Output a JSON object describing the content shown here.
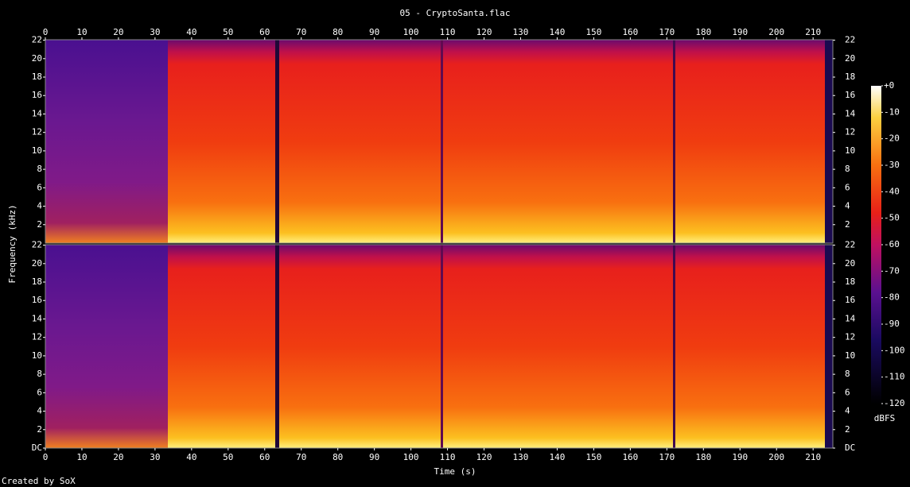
{
  "chart_data": {
    "type": "spectrogram",
    "title": "05 - CryptoSanta.flac",
    "xlabel": "Time (s)",
    "ylabel": "Frequency (kHz)",
    "xlim": [
      0,
      215.4
    ],
    "xticks": [
      0,
      10,
      20,
      30,
      40,
      50,
      60,
      70,
      80,
      90,
      100,
      110,
      120,
      130,
      140,
      150,
      160,
      170,
      180,
      190,
      200,
      210
    ],
    "ylim": [
      0,
      22.05
    ],
    "channels": [
      {
        "yticks": [
          2,
          4,
          6,
          8,
          10,
          12,
          14,
          16,
          18,
          20,
          22
        ]
      },
      {
        "yticks": [
          {
            "value": 0,
            "label": "DC"
          },
          2,
          4,
          6,
          8,
          10,
          12,
          14,
          16,
          18,
          20,
          22
        ]
      }
    ],
    "colorbar": {
      "label": "dBFS",
      "zlim": [
        -120,
        0
      ],
      "zticks": [
        {
          "value": 0,
          "label": "+0"
        },
        -10,
        -20,
        -30,
        -40,
        -50,
        -60,
        -70,
        -80,
        -90,
        -100,
        -110,
        -120
      ]
    },
    "footer": "Created by SoX"
  }
}
